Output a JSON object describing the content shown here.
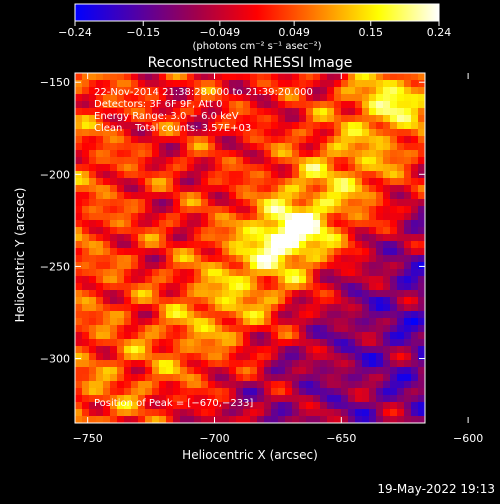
{
  "chart_data": {
    "type": "heatmap",
    "title": "Reconstructed RHESSI Image",
    "xlabel": "Heliocentric X (arcsec)",
    "ylabel": "Heliocentric Y (arcsec)",
    "xlim": [
      -755,
      -617
    ],
    "ylim": [
      -335,
      -145
    ],
    "x_ticks": [
      -750,
      -700,
      -650,
      -600
    ],
    "x_tick_labels": [
      "−750",
      "−700",
      "−650",
      "−600"
    ],
    "y_ticks": [
      -150,
      -200,
      -250,
      -300
    ],
    "y_tick_labels": [
      "−150",
      "−200",
      "−250",
      "−300"
    ],
    "colorbar": {
      "min": -0.24,
      "max": 0.24,
      "ticks": [
        -0.24,
        -0.15,
        -0.049,
        0.049,
        0.15,
        0.24
      ],
      "tick_labels": [
        "−0.24",
        "−0.15",
        "−0.049",
        "0.049",
        "0.15",
        "0.24"
      ],
      "unit_label": "(photons cm⁻² s⁻¹ asec⁻²)",
      "colormap": [
        "#0000ff",
        "#5000a8",
        "#a0004c",
        "#ff0000",
        "#ff8000",
        "#ffff00",
        "#ffffff"
      ]
    },
    "annotations": {
      "time_range": "22‐Nov‐2014 21:38:28.000 to 21:39:20.000",
      "detectors": "Detectors: 3F 6F 9F, Att 0",
      "energy_range": "Energy Range: 3.0 − 6.0 keV",
      "clean_counts": "Clean    Total counts: 3.57E+03",
      "peak_position": "Position of Peak = [−670,−233]"
    },
    "peak": {
      "x": -670,
      "y": -233
    },
    "grid": false
  },
  "footer": {
    "timestamp": "19‐May‐2022 19:13"
  },
  "colors": {
    "background": "#000000",
    "foreground": "#ffffff"
  }
}
